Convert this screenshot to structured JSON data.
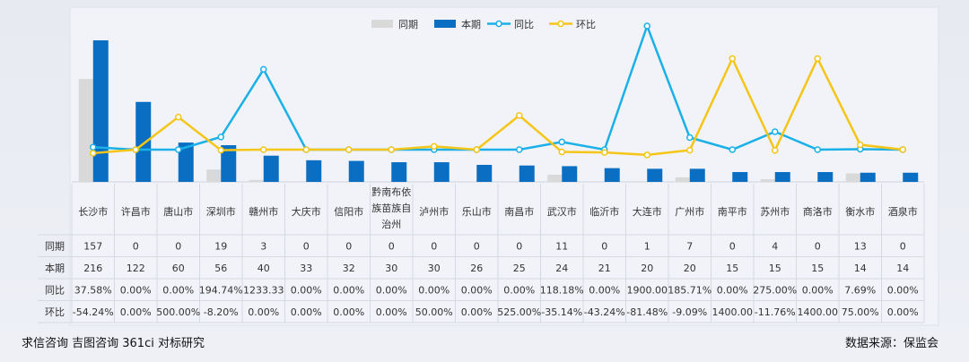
{
  "chart_data": {
    "type": "bar",
    "categories": [
      "长沙市",
      "许昌市",
      "唐山市",
      "深圳市",
      "赣州市",
      "大庆市",
      "信阳市",
      "黔南布依族苗族自治州",
      "泸州市",
      "乐山市",
      "南昌市",
      "武汉市",
      "临沂市",
      "大连市",
      "广州市",
      "南平市",
      "苏州市",
      "商洛市",
      "衡水市",
      "酒泉市"
    ],
    "category_lines": [
      [
        "长沙市"
      ],
      [
        "许昌市"
      ],
      [
        "唐山市"
      ],
      [
        "深圳市"
      ],
      [
        "赣州市"
      ],
      [
        "大庆市"
      ],
      [
        "信阳市"
      ],
      [
        "黔南布依",
        "族苗族自",
        "治州"
      ],
      [
        "泸州市"
      ],
      [
        "乐山市"
      ],
      [
        "南昌市"
      ],
      [
        "武汉市"
      ],
      [
        "临沂市"
      ],
      [
        "大连市"
      ],
      [
        "广州市"
      ],
      [
        "南平市"
      ],
      [
        "苏州市"
      ],
      [
        "商洛市"
      ],
      [
        "衡水市"
      ],
      [
        "酒泉市"
      ]
    ],
    "series": [
      {
        "name": "同期",
        "kind": "bar",
        "color": "#d9d9d9",
        "values": [
          157,
          0,
          0,
          19,
          3,
          0,
          0,
          0,
          0,
          0,
          0,
          11,
          0,
          1,
          7,
          0,
          4,
          0,
          13,
          0
        ]
      },
      {
        "name": "本期",
        "kind": "bar",
        "color": "#0a6fc2",
        "values": [
          216,
          122,
          60,
          56,
          40,
          33,
          32,
          30,
          30,
          26,
          25,
          24,
          21,
          20,
          20,
          15,
          15,
          15,
          14,
          14
        ]
      },
      {
        "name": "同比",
        "kind": "line",
        "color": "#1ab0e8",
        "values": [
          37.58,
          0,
          0,
          194.74,
          1233.33,
          0,
          0,
          0,
          0,
          0,
          0,
          118.18,
          0,
          1900,
          185.71,
          0,
          275,
          0,
          7.69,
          0
        ]
      },
      {
        "name": "环比",
        "kind": "line",
        "color": "#f5c518",
        "values": [
          -54.24,
          0,
          500,
          -8.2,
          0,
          0,
          0,
          0,
          50,
          0,
          525,
          -35.14,
          -43.24,
          -81.48,
          -9.09,
          1400,
          -11.76,
          1400,
          75,
          0
        ]
      }
    ],
    "table_rows": [
      {
        "label": "同期",
        "cells": [
          "157",
          "0",
          "0",
          "19",
          "3",
          "0",
          "0",
          "0",
          "0",
          "0",
          "0",
          "11",
          "0",
          "1",
          "7",
          "0",
          "4",
          "0",
          "13",
          "0"
        ]
      },
      {
        "label": "本期",
        "cells": [
          "216",
          "122",
          "60",
          "56",
          "40",
          "33",
          "32",
          "30",
          "30",
          "26",
          "25",
          "24",
          "21",
          "20",
          "20",
          "15",
          "15",
          "15",
          "14",
          "14"
        ]
      },
      {
        "label": "同比",
        "cells": [
          "37.58%",
          "0.00%",
          "0.00%",
          "194.74%",
          "1233.33",
          "0.00%",
          "0.00%",
          "0.00%",
          "0.00%",
          "0.00%",
          "0.00%",
          "118.18%",
          "0.00%",
          "1900.00",
          "185.71%",
          "0.00%",
          "275.00%",
          "0.00%",
          "7.69%",
          "0.00%"
        ]
      },
      {
        "label": "环比",
        "cells": [
          "-54.24%",
          "0.00%",
          "500.00%",
          "-8.20%",
          "0.00%",
          "0.00%",
          "0.00%",
          "0.00%",
          "50.00%",
          "0.00%",
          "525.00%",
          "-35.14%",
          "-43.24%",
          "-81.48%",
          "-9.09%",
          "1400.00",
          "-11.76%",
          "1400.00",
          "75.00%",
          "0.00%"
        ]
      }
    ],
    "legend": [
      "同期",
      "本期",
      "同比",
      "环比"
    ],
    "legend_position": "top-center",
    "grid": false
  },
  "footer": {
    "left": "求信咨询 吉图咨询 361ci 对标研究",
    "right": "数据来源：保监会"
  }
}
